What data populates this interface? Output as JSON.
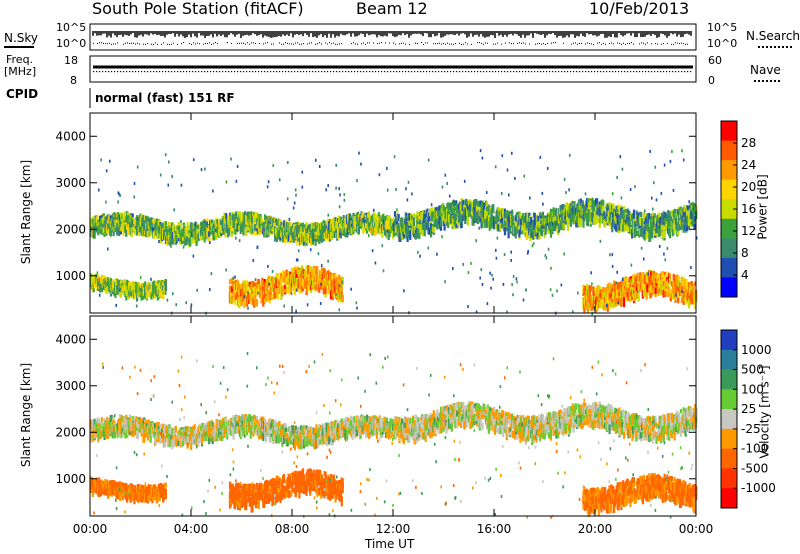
{
  "header": {
    "station": "South Pole Station (fitACF)",
    "beam": "Beam 12",
    "date": "10/Feb/2013"
  },
  "noise_panel": {
    "left_label": "N.Sky",
    "right_label": "N.Search",
    "ticks_left": [
      "10^5",
      "10^0"
    ],
    "ticks_right": [
      "10^5",
      "10^0"
    ]
  },
  "freq_panel": {
    "left_label_line1": "Freq.",
    "left_label_line2": "[MHz]",
    "right_label": "Nave",
    "ticks_left": [
      "18",
      "8"
    ],
    "ticks_right": [
      "60",
      "0"
    ]
  },
  "cpid": {
    "label": "CPID",
    "value": "normal (fast) 151 RF"
  },
  "x_axis": {
    "title": "Time UT",
    "ticks": [
      "00:00",
      "04:00",
      "08:00",
      "12:00",
      "16:00",
      "20:00",
      "00:00"
    ]
  },
  "power_panel": {
    "y_title": "Slant Range [km]",
    "y_ticks": [
      "4000",
      "3000",
      "2000",
      "1000"
    ],
    "colorbar_title": "Power [dB]",
    "colorbar_ticks": [
      "28",
      "24",
      "20",
      "16",
      "12",
      "8",
      "4"
    ],
    "colorbar_colors": [
      "#ff0000",
      "#ff5a00",
      "#ff9a00",
      "#ffd400",
      "#c8dc00",
      "#3ba23b",
      "#3a8a6e",
      "#1f4fb0",
      "#0000ff"
    ]
  },
  "velocity_panel": {
    "y_title": "Slant Range [km]",
    "y_ticks": [
      "4000",
      "3000",
      "2000",
      "1000"
    ],
    "colorbar_title": "Velocity [m s⁻¹]",
    "colorbar_ticks": [
      "1000",
      "500",
      "100",
      "25",
      "-25",
      "-100",
      "-500",
      "-1000"
    ],
    "colorbar_colors": [
      "#1f3fbf",
      "#2a7f9a",
      "#3a9a5a",
      "#66cc33",
      "#c8c8c0",
      "#ff9900",
      "#ff6600",
      "#ff3300",
      "#ff0000"
    ]
  },
  "chart_data": {
    "type": "heatmap",
    "x": {
      "label": "Time UT",
      "range": [
        0,
        24
      ],
      "ticks": [
        "00:00",
        "04:00",
        "08:00",
        "12:00",
        "16:00",
        "20:00",
        "00:00"
      ]
    },
    "y": {
      "label": "Slant Range [km]",
      "range": [
        200,
        4500
      ],
      "ticks": [
        1000,
        2000,
        3000,
        4000
      ]
    },
    "panels": [
      {
        "name": "Power [dB]",
        "scale": [
          0,
          30
        ],
        "ticks": [
          4,
          8,
          12,
          16,
          20,
          24,
          28
        ]
      },
      {
        "name": "Velocity [m s-1]",
        "scale": [
          -1000,
          1000
        ],
        "ticks": [
          1000,
          500,
          100,
          25,
          -25,
          -100,
          -500,
          -1000
        ]
      }
    ],
    "bands": [
      {
        "t_start": 0.0,
        "t_end": 12.0,
        "range_center_km": 2100,
        "range_width_km": 350,
        "power_db": 12,
        "velocity": 0
      },
      {
        "t_start": 12.0,
        "t_end": 24.0,
        "range_center_km": 2300,
        "range_width_km": 450,
        "power_db": 10,
        "velocity": 0
      },
      {
        "t_start": 0.0,
        "t_end": 3.0,
        "range_center_km": 850,
        "range_width_km": 250,
        "power_db": 14,
        "velocity": -120
      },
      {
        "t_start": 5.5,
        "t_end": 10.0,
        "range_center_km": 850,
        "range_width_km": 450,
        "power_db": 22,
        "velocity": -150
      },
      {
        "t_start": 19.5,
        "t_end": 24.0,
        "range_center_km": 750,
        "range_width_km": 450,
        "power_db": 22,
        "velocity": -130
      }
    ]
  }
}
